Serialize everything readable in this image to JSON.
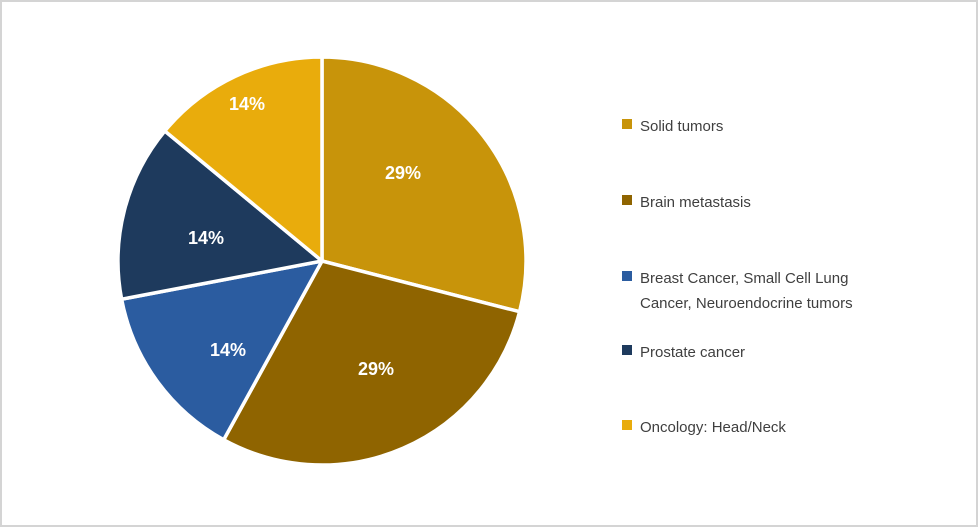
{
  "chart_data": {
    "type": "pie",
    "title": "",
    "start_angle_deg": 0,
    "direction": "clockwise",
    "legend_position": "right",
    "data_label_color": "#ffffff",
    "slices": [
      {
        "label": "Solid tumors",
        "value": 29,
        "display": "29%",
        "color": "#C8940A"
      },
      {
        "label": "Brain metastasis",
        "value": 29,
        "display": "29%",
        "color": "#8F6400"
      },
      {
        "label": "Breast Cancer, Small Cell Lung Cancer, Neuroendocrine tumors",
        "value": 14,
        "display": "14%",
        "color": "#2B5CA0"
      },
      {
        "label": "Prostate cancer",
        "value": 14,
        "display": "14%",
        "color": "#1E3A5D"
      },
      {
        "label": "Oncology: Head/Neck",
        "value": 14,
        "display": "14%",
        "color": "#E9AC0C"
      }
    ]
  }
}
